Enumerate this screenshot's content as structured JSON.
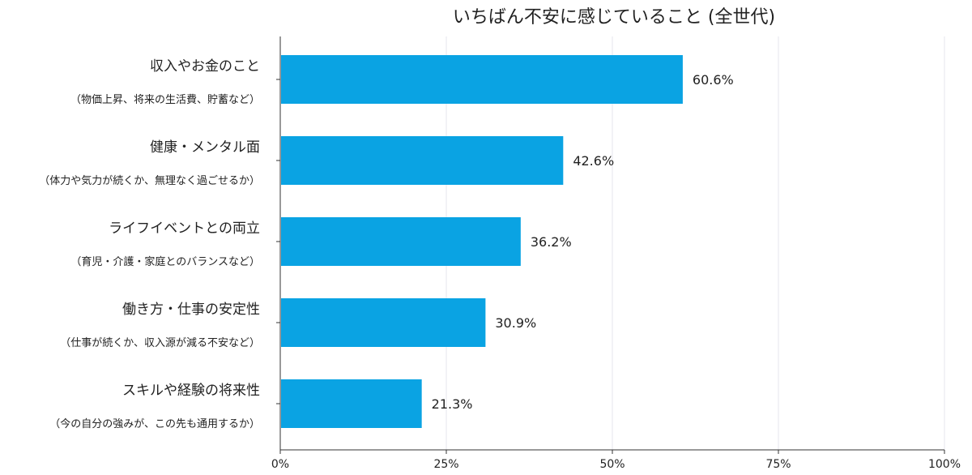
{
  "chart_data": {
    "type": "bar",
    "orientation": "horizontal",
    "title": "いちばん不安に感じていること (全世代)",
    "categories": [
      {
        "label": "収入やお金のこと",
        "sublabel": "（物価上昇、将来の生活費、貯蓄など）"
      },
      {
        "label": "健康・メンタル面",
        "sublabel": "（体力や気力が続くか、無理なく過ごせるか）"
      },
      {
        "label": "ライフイベントとの両立",
        "sublabel": "（育児・介護・家庭とのバランスなど）"
      },
      {
        "label": "働き方・仕事の安定性",
        "sublabel": "（仕事が続くか、収入源が減る不安など）"
      },
      {
        "label": "スキルや経験の将来性",
        "sublabel": "（今の自分の強みが、この先も通用するか）"
      }
    ],
    "values": [
      60.6,
      42.6,
      36.2,
      30.9,
      21.3
    ],
    "value_labels": [
      "60.6%",
      "42.6%",
      "36.2%",
      "30.9%",
      "21.3%"
    ],
    "xlim": [
      0,
      100
    ],
    "xticks": [
      0,
      25,
      50,
      75,
      100
    ],
    "xtick_labels": [
      "0%",
      "25%",
      "50%",
      "75%",
      "100%"
    ],
    "grid": true,
    "bar_color": "#0aa3e3",
    "grid_color": "#e6e6ee",
    "axis_color": "#333333"
  }
}
